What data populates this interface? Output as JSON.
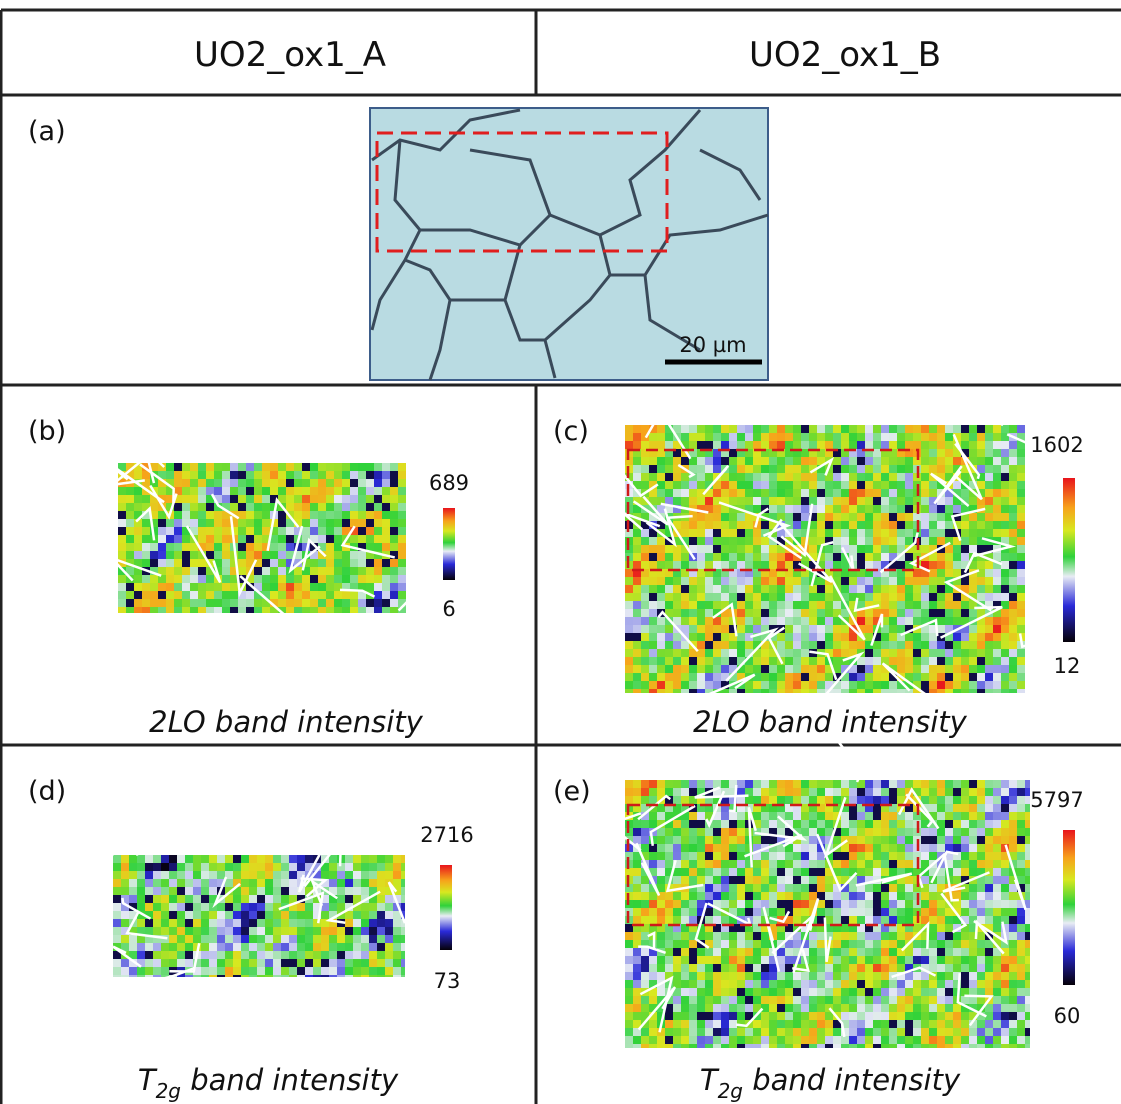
{
  "header": {
    "col_a": "UO2_ox1_A",
    "col_b": "UO2_ox1_B"
  },
  "panels": [
    {
      "label": "(a)",
      "scale_bar": "20 µm"
    },
    {
      "label": "(b)",
      "colorbar_max": 689,
      "colorbar_min": 6,
      "caption": "2LO band intensity"
    },
    {
      "label": "(c)",
      "colorbar_max": 1602,
      "colorbar_min": 12,
      "caption": "2LO band intensity"
    },
    {
      "label": "(d)",
      "colorbar_max": 2716,
      "colorbar_min": 73,
      "caption_main": "T",
      "caption_sub": "2g",
      "caption_rest": " band intensity"
    },
    {
      "label": "(e)",
      "colorbar_max": 5797,
      "colorbar_min": 60,
      "caption_main": "T",
      "caption_sub": "2g",
      "caption_rest": " band intensity"
    }
  ]
}
